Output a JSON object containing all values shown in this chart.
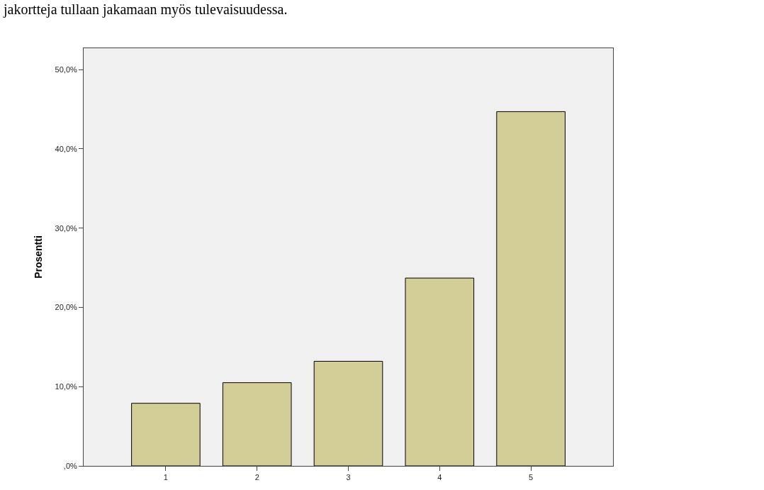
{
  "chart_data": {
    "type": "bar",
    "categories": [
      "1",
      "2",
      "3",
      "4",
      "5"
    ],
    "values": [
      7.9,
      10.5,
      13.2,
      23.7,
      44.7
    ],
    "color": "#d3ce98",
    "ylabel": "Prosentti",
    "ylim": [
      0,
      52.7
    ],
    "yticks": [
      {
        "value": 0,
        "label": ",0%"
      },
      {
        "value": 10,
        "label": "10,0%"
      },
      {
        "value": 20,
        "label": "20,0%"
      },
      {
        "value": 30,
        "label": "30,0%"
      },
      {
        "value": 40,
        "label": "40,0%"
      },
      {
        "value": 50,
        "label": "50,0%"
      }
    ],
    "grid": false,
    "annotations": [
      "jakortteja tullaan jakamaan myös tulevaisuudessa."
    ]
  }
}
